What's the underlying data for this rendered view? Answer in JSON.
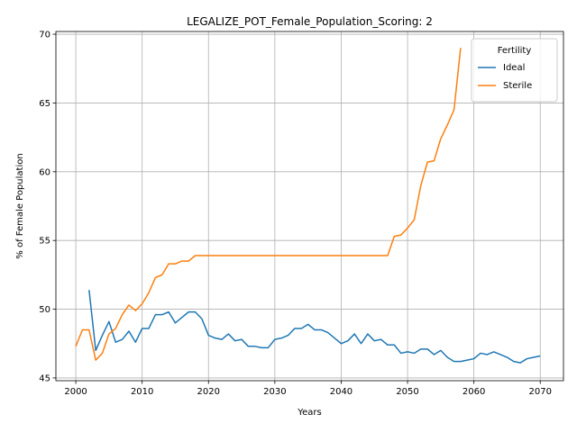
{
  "chart_data": {
    "type": "line",
    "title": "LEGALIZE_POT_Female_Population_Scoring: 2",
    "xlabel": "Years",
    "ylabel": "% of Female Population",
    "xlim": [
      1997,
      2073.5
    ],
    "ylim": [
      44.8,
      70.2
    ],
    "xticks": [
      2000,
      2010,
      2020,
      2030,
      2040,
      2050,
      2060,
      2070
    ],
    "yticks": [
      45,
      50,
      55,
      60,
      65,
      70
    ],
    "grid": true,
    "legend": {
      "title": "Fertility",
      "position": "top-right"
    },
    "series": [
      {
        "name": "Ideal",
        "color": "#1f77b4",
        "x": [
          2002,
          2003,
          2004,
          2005,
          2006,
          2007,
          2008,
          2009,
          2010,
          2011,
          2012,
          2013,
          2014,
          2015,
          2016,
          2017,
          2018,
          2019,
          2020,
          2021,
          2022,
          2023,
          2024,
          2025,
          2026,
          2027,
          2028,
          2029,
          2030,
          2031,
          2032,
          2033,
          2034,
          2035,
          2036,
          2037,
          2038,
          2039,
          2040,
          2041,
          2042,
          2043,
          2044,
          2045,
          2046,
          2047,
          2048,
          2049,
          2050,
          2051,
          2052,
          2053,
          2054,
          2055,
          2056,
          2057,
          2058,
          2059,
          2060,
          2061,
          2062,
          2063,
          2064,
          2065,
          2066,
          2067,
          2068,
          2069,
          2070
        ],
        "y": [
          51.4,
          47.0,
          48.1,
          49.1,
          47.6,
          47.8,
          48.4,
          47.6,
          48.6,
          48.6,
          49.6,
          49.6,
          49.8,
          49.0,
          49.4,
          49.8,
          49.8,
          49.3,
          48.1,
          47.9,
          47.8,
          48.2,
          47.7,
          47.8,
          47.3,
          47.3,
          47.2,
          47.2,
          47.8,
          47.9,
          48.1,
          48.6,
          48.6,
          48.9,
          48.5,
          48.5,
          48.3,
          47.9,
          47.5,
          47.7,
          48.2,
          47.5,
          48.2,
          47.7,
          47.8,
          47.4,
          47.4,
          46.8,
          46.9,
          46.8,
          47.1,
          47.1,
          46.7,
          47.0,
          46.5,
          46.2,
          46.2,
          46.3,
          46.4,
          46.8,
          46.7,
          46.9,
          46.7,
          46.5,
          46.2,
          46.1,
          46.4,
          46.5,
          46.6
        ]
      },
      {
        "name": "Sterile",
        "color": "#ff7f0e",
        "x": [
          2000,
          2001,
          2002,
          2003,
          2004,
          2005,
          2006,
          2007,
          2008,
          2009,
          2010,
          2011,
          2012,
          2013,
          2014,
          2015,
          2016,
          2017,
          2018,
          2019,
          2020,
          2021,
          2022,
          2023,
          2024,
          2025,
          2026,
          2027,
          2028,
          2029,
          2030,
          2031,
          2032,
          2033,
          2034,
          2035,
          2036,
          2037,
          2038,
          2039,
          2040,
          2041,
          2042,
          2043,
          2044,
          2045,
          2046,
          2047,
          2048,
          2049,
          2050,
          2051,
          2052,
          2053,
          2054,
          2055,
          2056,
          2057,
          2058
        ],
        "y": [
          47.3,
          48.5,
          48.5,
          46.3,
          46.8,
          48.2,
          48.6,
          49.6,
          50.3,
          49.9,
          50.4,
          51.2,
          52.3,
          52.5,
          53.3,
          53.3,
          53.5,
          53.5,
          53.9,
          53.9,
          53.9,
          53.9,
          53.9,
          53.9,
          53.9,
          53.9,
          53.9,
          53.9,
          53.9,
          53.9,
          53.9,
          53.9,
          53.9,
          53.9,
          53.9,
          53.9,
          53.9,
          53.9,
          53.9,
          53.9,
          53.9,
          53.9,
          53.9,
          53.9,
          53.9,
          53.9,
          53.9,
          53.9,
          55.3,
          55.4,
          55.9,
          56.5,
          59.0,
          60.7,
          60.8,
          62.4,
          63.4,
          64.5,
          69.0
        ]
      }
    ]
  }
}
